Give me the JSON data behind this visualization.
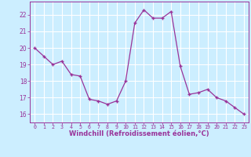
{
  "x": [
    0,
    1,
    2,
    3,
    4,
    5,
    6,
    7,
    8,
    9,
    10,
    11,
    12,
    13,
    14,
    15,
    16,
    17,
    18,
    19,
    20,
    21,
    22,
    23
  ],
  "y": [
    20.0,
    19.5,
    19.0,
    19.2,
    18.4,
    18.3,
    16.9,
    16.8,
    16.6,
    16.8,
    18.0,
    21.5,
    22.3,
    21.8,
    21.8,
    22.2,
    18.9,
    17.2,
    17.3,
    17.5,
    17.0,
    16.8,
    16.4,
    16.0
  ],
  "line_color": "#993399",
  "marker_color": "#993399",
  "bg_color": "#cceeff",
  "grid_color": "#aadddd",
  "tick_color": "#993399",
  "label_color": "#993399",
  "xlabel": "Windchill (Refroidissement éolien,°C)",
  "ylim": [
    15.5,
    22.8
  ],
  "xlim": [
    -0.5,
    23.5
  ],
  "yticks": [
    16,
    17,
    18,
    19,
    20,
    21,
    22
  ],
  "xticks": [
    0,
    1,
    2,
    3,
    4,
    5,
    6,
    7,
    8,
    9,
    10,
    11,
    12,
    13,
    14,
    15,
    16,
    17,
    18,
    19,
    20,
    21,
    22,
    23
  ]
}
